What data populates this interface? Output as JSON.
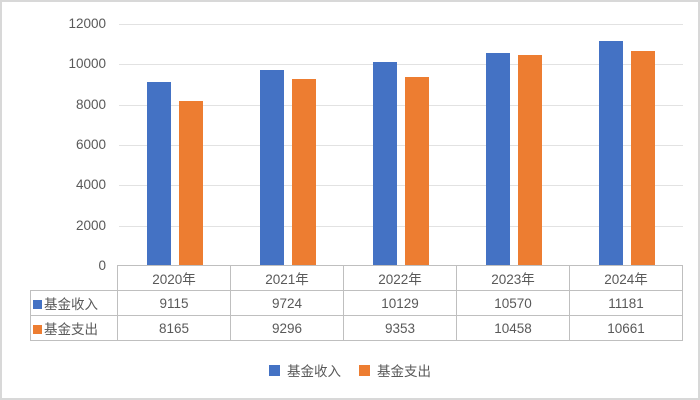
{
  "chart_data": {
    "type": "bar",
    "title": "",
    "categories": [
      "2020年",
      "2021年",
      "2022年",
      "2023年",
      "2024年"
    ],
    "series": [
      {
        "name": "基金收入",
        "color": "#4472C4",
        "values": [
          9115,
          9724,
          10129,
          10570,
          11181
        ]
      },
      {
        "name": "基金支出",
        "color": "#ED7D31",
        "values": [
          8165,
          9296,
          9353,
          10458,
          10661
        ]
      }
    ],
    "y_axis": {
      "min": 0,
      "max": 12000,
      "tick_interval": 2000,
      "tick_labels": [
        "0",
        "2000",
        "4000",
        "6000",
        "8000",
        "10000",
        "12000"
      ]
    },
    "grid": true,
    "legend_position": "bottom",
    "data_table_shown": true
  },
  "legend": {
    "items": [
      {
        "label": "基金收入",
        "color": "#4472C4"
      },
      {
        "label": "基金支出",
        "color": "#ED7D31"
      }
    ]
  },
  "colors": {
    "series_income": "#4472C4",
    "series_expense": "#ED7D31",
    "gridline": "#E2E2E2",
    "table_border": "#BFBFBF",
    "text": "#595959",
    "frame_border": "#D8D8D8"
  }
}
